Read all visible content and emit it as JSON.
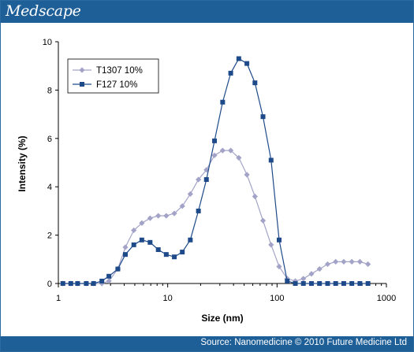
{
  "header": {
    "brand": "Medscape"
  },
  "footer": {
    "source": "Source: Nanomedicine © 2010 Future Medicine Ltd"
  },
  "colors": {
    "brand_blue": "#1f5f98",
    "series1": "#a3a3c8",
    "series2": "#1e4a8a"
  },
  "chart_data": {
    "type": "line",
    "xlabel": "Size (nm)",
    "ylabel": "Intensity (%)",
    "xscale": "log",
    "xlim": [
      1,
      1000
    ],
    "ylim": [
      0,
      10
    ],
    "xticks": [
      "1",
      "10",
      "100",
      "1000"
    ],
    "yticks": [
      "0",
      "2",
      "4",
      "6",
      "8",
      "10"
    ],
    "grid": false,
    "legend_position": "top-left",
    "series": [
      {
        "name": "T1307 10%",
        "marker": "diamond",
        "color": "#a3a3c8",
        "x": [
          1.1,
          1.3,
          1.5,
          1.8,
          2.1,
          2.5,
          2.9,
          3.5,
          4.1,
          4.9,
          5.8,
          6.9,
          8.2,
          9.7,
          11.5,
          13.6,
          16.1,
          19.1,
          22.6,
          26.8,
          31.8,
          37.7,
          44.7,
          53.0,
          62.8,
          74.4,
          88.2,
          104.5,
          123.9,
          146.9,
          174.1,
          206.3,
          244.6,
          290.0,
          343.7,
          407.4,
          482.9,
          572.4,
          678.6
        ],
        "values": [
          0,
          0,
          0,
          0,
          0,
          0,
          0.1,
          0.6,
          1.5,
          2.2,
          2.5,
          2.7,
          2.8,
          2.8,
          2.9,
          3.2,
          3.7,
          4.3,
          4.7,
          5.3,
          5.5,
          5.5,
          5.2,
          4.5,
          3.6,
          2.6,
          1.6,
          0.7,
          0.2,
          0.1,
          0.2,
          0.4,
          0.6,
          0.8,
          0.9,
          0.9,
          0.9,
          0.9,
          0.8
        ]
      },
      {
        "name": "F127 10%",
        "marker": "square",
        "color": "#1e4a8a",
        "x": [
          1.1,
          1.3,
          1.5,
          1.8,
          2.1,
          2.5,
          2.9,
          3.5,
          4.1,
          4.9,
          5.8,
          6.9,
          8.2,
          9.7,
          11.5,
          13.6,
          16.1,
          19.1,
          22.6,
          26.8,
          31.8,
          37.7,
          44.7,
          53.0,
          62.8,
          74.4,
          88.2,
          104.5,
          123.9,
          146.9,
          174.1,
          206.3,
          244.6,
          290.0,
          343.7,
          407.4,
          482.9,
          572.4,
          678.6
        ],
        "values": [
          0,
          0,
          0,
          0,
          0,
          0.1,
          0.3,
          0.6,
          1.2,
          1.6,
          1.8,
          1.7,
          1.4,
          1.2,
          1.1,
          1.3,
          1.8,
          3.0,
          4.3,
          5.9,
          7.5,
          8.7,
          9.3,
          9.1,
          8.3,
          6.9,
          5.1,
          1.8,
          0.1,
          0,
          0,
          0,
          0,
          0,
          0,
          0,
          0,
          0,
          0
        ]
      }
    ]
  }
}
